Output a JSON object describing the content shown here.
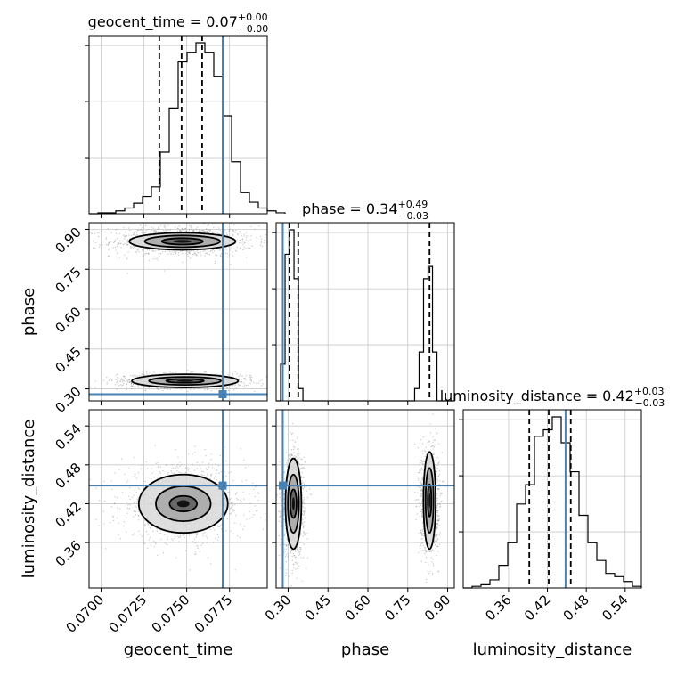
{
  "chart_data": {
    "type": "corner",
    "parameters": [
      {
        "name": "geocent_time",
        "axis_label": "geocent_time",
        "range": [
          0.0693,
          0.0797
        ],
        "ticks": [
          "0.0700",
          "0.0725",
          "0.0750",
          "0.0775"
        ],
        "tick_values": [
          0.07,
          0.0725,
          0.075,
          0.0775
        ],
        "title": {
          "text": "geocent_time = 0.07",
          "sup": "+0.00",
          "sub": "−0.00"
        },
        "quantiles": [
          0.0734,
          0.0747,
          0.0759
        ],
        "truth": 0.0771,
        "histogram": {
          "edges_start": 0.0693,
          "bin_width": 0.00052,
          "counts": [
            0,
            1,
            1,
            3,
            6,
            11,
            18,
            28,
            64,
            110,
            158,
            168,
            178,
            168,
            143,
            102,
            54,
            22,
            12,
            6,
            3,
            1
          ]
        }
      },
      {
        "name": "phase",
        "axis_label": "phase",
        "range": [
          0.255,
          0.925
        ],
        "ticks": [
          "0.30",
          "0.45",
          "0.60",
          "0.75",
          "0.90"
        ],
        "tick_values": [
          0.3,
          0.45,
          0.6,
          0.75,
          0.9
        ],
        "title": {
          "text": "phase = 0.34",
          "sup": "+0.49",
          "sub": "−0.03"
        },
        "quantiles": [
          0.305,
          0.338,
          0.832
        ],
        "truth": 0.28,
        "histogram": {
          "edges_start": 0.255,
          "bin_width": 0.0168,
          "counts": [
            0,
            3,
            12,
            14,
            10,
            1,
            0,
            0,
            0,
            0,
            0,
            0,
            0,
            0,
            0,
            0,
            0,
            0,
            0,
            0,
            0,
            0,
            0,
            0,
            0,
            0,
            0,
            0,
            0,
            0,
            0,
            1,
            4,
            10,
            11,
            4,
            0,
            0,
            0,
            0
          ]
        }
      },
      {
        "name": "luminosity_distance",
        "axis_label": "luminosity_distance",
        "range": [
          0.29,
          0.565
        ],
        "ticks": [
          "0.36",
          "0.42",
          "0.48",
          "0.54"
        ],
        "tick_values": [
          0.36,
          0.42,
          0.48,
          0.54
        ],
        "title": {
          "text": "luminosity_distance = 0.42",
          "sup": "+0.03",
          "sub": "−0.03"
        },
        "quantiles": [
          0.392,
          0.422,
          0.456
        ],
        "truth": 0.448,
        "histogram": {
          "edges_start": 0.29,
          "bin_width": 0.01375,
          "counts": [
            0,
            1,
            2,
            5,
            14,
            28,
            52,
            64,
            94,
            98,
            106,
            90,
            72,
            45,
            28,
            17,
            9,
            7,
            4,
            1
          ]
        }
      }
    ],
    "pairs": [
      {
        "x": "geocent_time",
        "y": "phase",
        "clusters": [
          {
            "center": [
              0.07475,
              0.855
            ],
            "spread": [
              0.0018,
              0.025
            ],
            "contours": [
              [
                0.0012,
                0.012
              ],
              [
                0.0022,
                0.022
              ],
              [
                0.0031,
                0.032
              ]
            ]
          },
          {
            "center": [
              0.0749,
              0.33
            ],
            "spread": [
              0.0017,
              0.012
            ],
            "contours": [
              [
                0.0011,
                0.007
              ],
              [
                0.0021,
                0.015
              ],
              [
                0.0031,
                0.025
              ]
            ]
          }
        ],
        "truth": [
          0.0771,
          0.28
        ]
      },
      {
        "x": "geocent_time",
        "y": "luminosity_distance",
        "clusters": [
          {
            "center": [
              0.0748,
              0.42
            ],
            "spread": [
              0.0016,
              0.026
            ],
            "contours": [
              [
                0.0008,
                0.012
              ],
              [
                0.0016,
                0.027
              ],
              [
                0.0026,
                0.045
              ]
            ]
          }
        ],
        "truth": [
          0.0771,
          0.448
        ]
      },
      {
        "x": "phase",
        "y": "luminosity_distance",
        "clusters": [
          {
            "center": [
              0.32,
              0.42
            ],
            "spread": [
              0.018,
              0.035
            ],
            "contours": [
              [
                0.012,
                0.022
              ],
              [
                0.021,
                0.045
              ],
              [
                0.03,
                0.07
              ]
            ]
          },
          {
            "center": [
              0.832,
              0.425
            ],
            "spread": [
              0.015,
              0.035
            ],
            "contours": [
              [
                0.007,
                0.025
              ],
              [
                0.015,
                0.05
              ],
              [
                0.023,
                0.075
              ]
            ]
          }
        ],
        "truth": [
          0.28,
          0.448
        ]
      }
    ],
    "colors": {
      "truth": "#4682b4",
      "hist": "#000000",
      "contour": "#000000",
      "samples": "#8c8c8c",
      "grid": "#c8c8c8"
    },
    "grid": true
  }
}
